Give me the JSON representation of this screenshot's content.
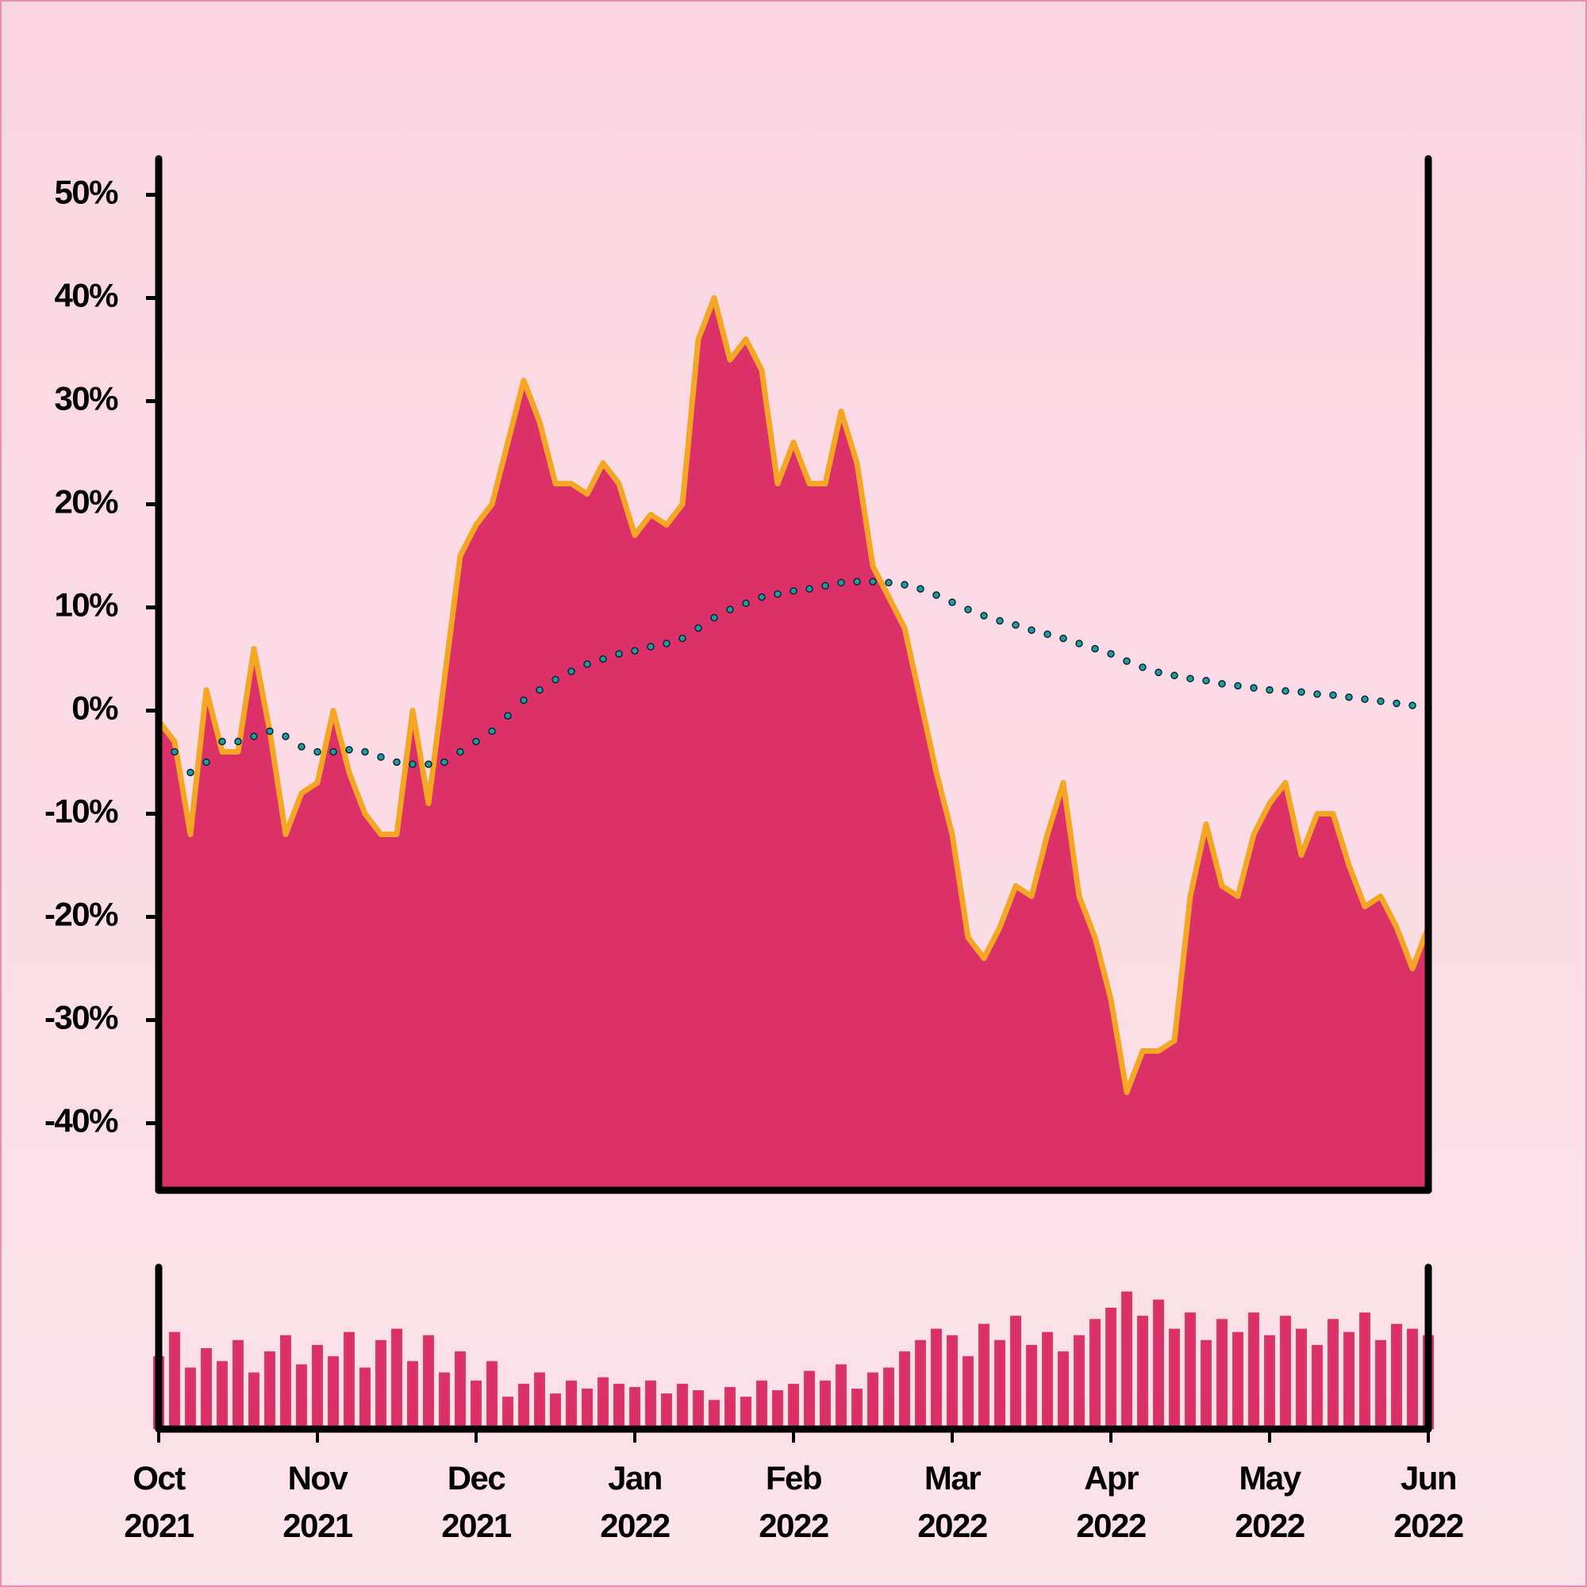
{
  "chart_data": [
    {
      "type": "area",
      "x": [
        0,
        0.1,
        0.2,
        0.3,
        0.4,
        0.5,
        0.6,
        0.7,
        0.8,
        0.9,
        1,
        1.1,
        1.2,
        1.3,
        1.4,
        1.5,
        1.6,
        1.7,
        1.8,
        1.9,
        2,
        2.1,
        2.2,
        2.3,
        2.4,
        2.5,
        2.6,
        2.7,
        2.8,
        2.9,
        3,
        3.1,
        3.2,
        3.3,
        3.4,
        3.5,
        3.6,
        3.7,
        3.8,
        3.9,
        4,
        4.1,
        4.2,
        4.3,
        4.4,
        4.5,
        4.6,
        4.7,
        4.8,
        4.9,
        5,
        5.1,
        5.2,
        5.3,
        5.4,
        5.5,
        5.6,
        5.7,
        5.8,
        5.9,
        6,
        6.1,
        6.2,
        6.3,
        6.4,
        6.5,
        6.6,
        6.7,
        6.8,
        6.9,
        7,
        7.1,
        7.2,
        7.3,
        7.4,
        7.5,
        7.6,
        7.7,
        7.8,
        7.9,
        8
      ],
      "series": [
        {
          "color": "#dc3068",
          "line_color": "#f5a623",
          "values": [
            -1,
            -3,
            -12,
            2,
            -4,
            -4,
            6,
            -2,
            -12,
            -8,
            -7,
            0,
            -6,
            -10,
            -12,
            -12,
            0,
            -9,
            3,
            15,
            18,
            20,
            26,
            32,
            28,
            22,
            22,
            21,
            24,
            22,
            17,
            19,
            18,
            20,
            36,
            40,
            34,
            36,
            33,
            22,
            26,
            22,
            22,
            29,
            24,
            14,
            11,
            8,
            1,
            -6,
            -12,
            -22,
            -24,
            -21,
            -17,
            -18,
            -12,
            -7,
            -18,
            -22,
            -28,
            -37,
            -33,
            -33,
            -32,
            -18,
            -11,
            -17,
            -18,
            -12,
            -9,
            -7,
            -14,
            -10,
            -10,
            -15,
            -19,
            -18,
            -21,
            -25,
            -21
          ]
        },
        {
          "style": "dots",
          "color": "#1a9ea0",
          "values": [
            -3.5,
            -4,
            -6,
            -5,
            -3,
            -3,
            -2.5,
            -2,
            -2.5,
            -3.5,
            -4,
            -4,
            -3.8,
            -4,
            -4.5,
            -5,
            -5.2,
            -5.2,
            -5,
            -4,
            -3,
            -2,
            -0.5,
            1,
            2,
            3,
            3.8,
            4.5,
            5,
            5.5,
            5.8,
            6.2,
            6.5,
            7,
            8,
            9,
            9.8,
            10.4,
            11,
            11.3,
            11.6,
            11.8,
            12.1,
            12.4,
            12.5,
            12.5,
            12.4,
            12.2,
            11.8,
            11.2,
            10.5,
            9.8,
            9.2,
            8.7,
            8.3,
            7.8,
            7.4,
            7,
            6.5,
            6,
            5.5,
            4.8,
            4.2,
            3.7,
            3.4,
            3.1,
            2.9,
            2.6,
            2.4,
            2.2,
            2,
            1.9,
            1.8,
            1.6,
            1.5,
            1.3,
            1.1,
            0.9,
            0.7,
            0.5,
            0.3
          ]
        }
      ],
      "xlim": [
        0,
        8
      ],
      "ylim": [
        -46.5,
        53.5
      ],
      "yticks": [
        {
          "value": 50,
          "label": "50%"
        },
        {
          "value": 40,
          "label": "40%"
        },
        {
          "value": 30,
          "label": "30%"
        },
        {
          "value": 20,
          "label": "20%"
        },
        {
          "value": 10,
          "label": "10%"
        },
        {
          "value": 0,
          "label": "0%"
        },
        {
          "value": -10,
          "label": "-10%"
        },
        {
          "value": -20,
          "label": "-20%"
        },
        {
          "value": -30,
          "label": "-30%"
        },
        {
          "value": -40,
          "label": "-40%"
        }
      ]
    },
    {
      "type": "bar",
      "color": "#dc3068",
      "values": [
        45,
        60,
        38,
        50,
        42,
        55,
        35,
        48,
        58,
        40,
        52,
        45,
        60,
        38,
        55,
        62,
        42,
        58,
        35,
        48,
        30,
        42,
        20,
        28,
        35,
        22,
        30,
        25,
        32,
        28,
        26,
        30,
        22,
        28,
        24,
        18,
        26,
        20,
        30,
        24,
        28,
        36,
        30,
        40,
        25,
        35,
        38,
        48,
        55,
        62,
        58,
        45,
        65,
        55,
        70,
        52,
        60,
        48,
        58,
        68,
        75,
        85,
        70,
        80,
        62,
        72,
        55,
        68,
        60,
        72,
        58,
        70,
        62,
        52,
        68,
        60,
        72,
        55,
        65,
        62,
        58
      ],
      "xlim": [
        0,
        8
      ],
      "ylim": [
        0,
        100
      ],
      "xticks": [
        {
          "value": 0,
          "label": "Oct 2021"
        },
        {
          "value": 1,
          "label": "Nov 2021"
        },
        {
          "value": 2,
          "label": "Dec 2021"
        },
        {
          "value": 3,
          "label": "Jan 2022"
        },
        {
          "value": 4,
          "label": "Feb 2022"
        },
        {
          "value": 5,
          "label": "Mar 2022"
        },
        {
          "value": 6,
          "label": "Apr 2022"
        },
        {
          "value": 7,
          "label": "May 2022"
        },
        {
          "value": 8,
          "label": "Jun 2022"
        }
      ]
    }
  ]
}
